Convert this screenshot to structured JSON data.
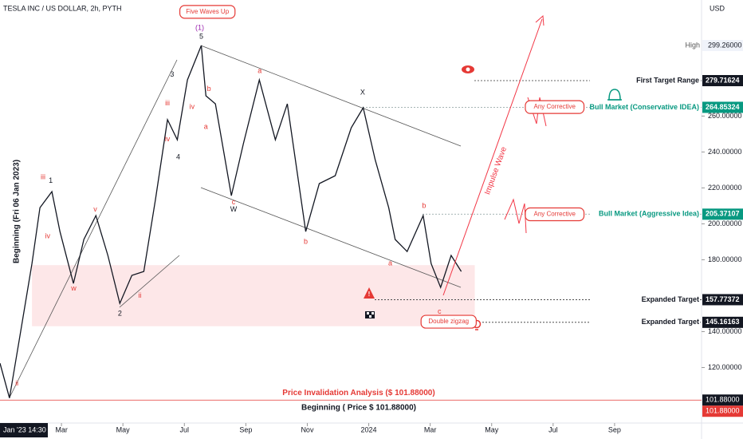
{
  "chart_data": {
    "type": "line",
    "title": "TESLA INC / US DOLLAR, 2h, PYTH",
    "currency": "USD",
    "cursor_label": "Jan '23  14:30",
    "start_label": "Beginning (Fri 06 Jan 2023)",
    "start_price_label": "Beginning ( Price $ 101.88000)",
    "impulse_label": "Impulse Wave",
    "high_label": "High",
    "high": {
      "value": 299.26,
      "label": "299.26000"
    },
    "x": [
      0,
      0.31,
      0.65,
      1.04,
      1.3,
      1.69,
      1.95,
      2.39,
      2.73,
      3.12,
      3.51,
      3.9,
      4.29,
      4.68,
      5.06,
      5.45,
      5.77,
      6.1,
      6.55,
      6.7,
      7.01,
      7.53,
      7.92,
      8.44,
      8.96,
      9.35,
      9.95,
      10.39,
      10.91,
      11.43,
      11.82,
      12.21,
      12.65,
      12.86,
      13.25,
      13.77,
      14.03,
      14.34,
      14.68,
      15.01
    ],
    "series": [
      {
        "name": "TSLA",
        "color": "#131722",
        "values": [
          122.4,
          103,
          137.9,
          177.9,
          209,
          217.9,
          195.7,
          166.8,
          191.3,
          204.6,
          182.4,
          155.7,
          171.3,
          173.5,
          213.5,
          258,
          246.8,
          280.1,
          299.26,
          271.3,
          266.8,
          215.7,
          244.6,
          280.1,
          246.8,
          266.8,
          195.7,
          222.4,
          226.8,
          253.5,
          264.6,
          235.7,
          209,
          191.3,
          184.6,
          204.6,
          177.9,
          164.6,
          182.4,
          173.5
        ]
      }
    ],
    "xlim": [
      0,
      22.83
    ],
    "ylim": [
      89.1,
      324.6
    ],
    "xticks": [
      {
        "value": 2,
        "label": "Mar"
      },
      {
        "value": 4,
        "label": "May"
      },
      {
        "value": 6,
        "label": "Jul"
      },
      {
        "value": 8,
        "label": "Sep"
      },
      {
        "value": 10,
        "label": "Nov"
      },
      {
        "value": 12,
        "label": "2024"
      },
      {
        "value": 14,
        "label": "Mar"
      },
      {
        "value": 16,
        "label": "May"
      },
      {
        "value": 18,
        "label": "Jul"
      },
      {
        "value": 20,
        "label": "Sep"
      }
    ],
    "yticks": [
      {
        "value": 120,
        "label": "120.00000"
      },
      {
        "value": 140,
        "label": "140.00000"
      },
      {
        "value": 180,
        "label": "180.00000"
      },
      {
        "value": 200,
        "label": "200.00000"
      },
      {
        "value": 220,
        "label": "220.00000"
      },
      {
        "value": 240,
        "label": "240.00000"
      },
      {
        "value": 260,
        "label": "260.00000"
      }
    ],
    "zone": {
      "x": [
        1.04,
        15.45
      ],
      "y": [
        143,
        177
      ]
    },
    "levels": [
      {
        "value": 279.71624,
        "label": "First Target Range",
        "color": "#131722"
      },
      {
        "value": 264.85324,
        "label": "Bull Market (Conservative IDEA)",
        "color": "#089981"
      },
      {
        "value": 205.37107,
        "label": "Bull Market (Aggressive Idea)",
        "color": "#089981"
      },
      {
        "value": 157.77372,
        "label": "Expanded Target",
        "color": "#131722"
      },
      {
        "value": 145.16163,
        "label": "Expanded Target",
        "color": "#131722"
      },
      {
        "value": 101.88,
        "label": "Price Invalidation Analysis ($ 101.88000)",
        "color": "#e53935",
        "price_label": "101.88000"
      }
    ],
    "annotations": [
      {
        "x": 6.5,
        "y": 309,
        "text": "(1)",
        "color": "#9c27b0"
      },
      {
        "x": 6.55,
        "y": 304,
        "text": "5",
        "color": "#131722"
      },
      {
        "x": 1.65,
        "y": 224,
        "text": "1",
        "color": "#131722"
      },
      {
        "x": 5.6,
        "y": 283,
        "text": "3",
        "color": "#131722"
      },
      {
        "x": 3.9,
        "y": 150,
        "text": "2",
        "color": "#131722"
      },
      {
        "x": 5.8,
        "y": 237,
        "text": "4",
        "color": "#131722"
      },
      {
        "x": 7.6,
        "y": 208,
        "text": "W",
        "color": "#131722"
      },
      {
        "x": 11.8,
        "y": 273,
        "text": "X",
        "color": "#131722"
      },
      {
        "x": 14.3,
        "y": 146,
        "text": "(2)",
        "color": "#9c27b0"
      },
      {
        "x": 8.45,
        "y": 285,
        "text": "a",
        "color": "#e53935"
      },
      {
        "x": 9.95,
        "y": 190,
        "text": "b",
        "color": "#e53935"
      },
      {
        "x": 7.6,
        "y": 212,
        "text": "c",
        "color": "#e53935"
      },
      {
        "x": 12.7,
        "y": 178,
        "text": "a",
        "color": "#e53935"
      },
      {
        "x": 13.8,
        "y": 210,
        "text": "b",
        "color": "#e53935"
      },
      {
        "x": 14.3,
        "y": 151,
        "text": "c",
        "color": "#e53935"
      },
      {
        "x": 1.4,
        "y": 226,
        "text": "iii",
        "color": "#e53935"
      },
      {
        "x": 1.55,
        "y": 193,
        "text": "iv",
        "color": "#e53935"
      },
      {
        "x": 3.1,
        "y": 208,
        "text": "v",
        "color": "#e53935"
      },
      {
        "x": 2.4,
        "y": 164,
        "text": "w",
        "color": "#e53935"
      },
      {
        "x": 4.55,
        "y": 160,
        "text": "ii",
        "color": "#e53935"
      },
      {
        "x": 0.55,
        "y": 111,
        "text": "ii",
        "color": "#e53935"
      },
      {
        "x": 5.45,
        "y": 267,
        "text": "iii",
        "color": "#e53935"
      },
      {
        "x": 5.45,
        "y": 247,
        "text": "iv",
        "color": "#e53935"
      },
      {
        "x": 6.25,
        "y": 265,
        "text": "iv",
        "color": "#e53935"
      },
      {
        "x": 6.8,
        "y": 275,
        "text": "b",
        "color": "#e53935"
      },
      {
        "x": 6.7,
        "y": 254,
        "text": "a",
        "color": "#e53935"
      }
    ],
    "boxes": [
      {
        "x": 6.75,
        "y": 318,
        "text": "Five Waves Up"
      },
      {
        "x": 14.6,
        "y": 145.5,
        "text": "Double zigzag"
      },
      {
        "x": 18.05,
        "y": 265,
        "text": "Any Corrective"
      },
      {
        "x": 18.05,
        "y": 205.3,
        "text": "Any Corrective"
      }
    ]
  }
}
